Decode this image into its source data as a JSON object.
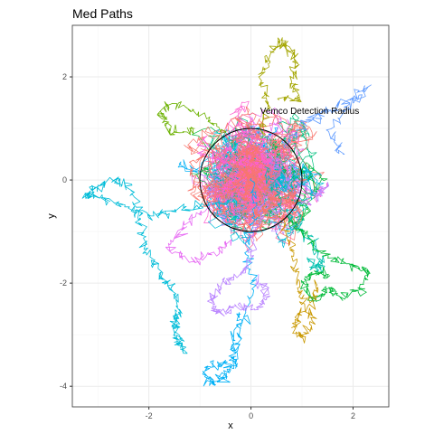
{
  "chart_data": {
    "type": "line",
    "title": "Med Paths",
    "xlabel": "x",
    "ylabel": "y",
    "xlim": [
      -3.5,
      2.7
    ],
    "ylim": [
      -4.4,
      3.0
    ],
    "x_ticks": [
      -2,
      0,
      2
    ],
    "y_ticks": [
      2,
      0,
      -2,
      -4
    ],
    "grid": true,
    "legend": "none",
    "circle": {
      "center": [
        0,
        0
      ],
      "radius": 1,
      "color": "#000000"
    },
    "annotation": {
      "text": "Vemco Detection Radius",
      "x": 0.18,
      "y": 1.28
    },
    "palette": [
      "#F8766D",
      "#E58700",
      "#C99800",
      "#A3A500",
      "#6BB100",
      "#00BA38",
      "#00BF7D",
      "#00C0AF",
      "#00BCD8",
      "#00B0F6",
      "#619CFF",
      "#B983FF",
      "#E76BF3",
      "#FD61D1",
      "#FF67A4"
    ],
    "paths": [
      {
        "color": "#00B0F6",
        "points": [
          [
            0.0,
            0.0
          ],
          [
            0.1,
            -0.6
          ],
          [
            -0.1,
            -1.3
          ],
          [
            0.05,
            -2.1
          ],
          [
            -0.2,
            -2.8
          ],
          [
            -0.3,
            -3.4
          ],
          [
            -0.5,
            -3.8
          ],
          [
            -0.75,
            -3.95
          ],
          [
            -0.9,
            -3.75
          ],
          [
            -0.6,
            -3.55
          ],
          [
            -0.3,
            -3.6
          ],
          [
            -0.4,
            -3.2
          ],
          [
            -0.2,
            -2.6
          ]
        ]
      },
      {
        "color": "#00BCD8",
        "points": [
          [
            -0.3,
            -0.4
          ],
          [
            -0.9,
            -0.5
          ],
          [
            -1.5,
            -0.6
          ],
          [
            -2.0,
            -0.7
          ],
          [
            -2.5,
            -0.5
          ],
          [
            -3.0,
            -0.35
          ],
          [
            -3.25,
            -0.3
          ],
          [
            -3.05,
            -0.15
          ],
          [
            -2.7,
            0.0
          ],
          [
            -2.35,
            -0.15
          ],
          [
            -2.2,
            -0.75
          ],
          [
            -2.05,
            -1.4
          ],
          [
            -1.8,
            -1.8
          ],
          [
            -1.55,
            -2.1
          ],
          [
            -1.4,
            -2.5
          ],
          [
            -1.5,
            -2.9
          ],
          [
            -1.3,
            -3.3
          ],
          [
            -1.5,
            -3.05
          ],
          [
            -1.45,
            -2.55
          ]
        ]
      },
      {
        "color": "#00C0AF",
        "points": [
          [
            0.3,
            0.2
          ],
          [
            0.6,
            -0.5
          ],
          [
            0.9,
            -0.9
          ],
          [
            1.2,
            -1.2
          ],
          [
            1.4,
            -1.6
          ],
          [
            1.3,
            -1.75
          ],
          [
            1.1,
            -1.5
          ]
        ]
      },
      {
        "color": "#00BA38",
        "points": [
          [
            0.7,
            -0.7
          ],
          [
            1.1,
            -1.1
          ],
          [
            1.5,
            -1.5
          ],
          [
            1.9,
            -1.6
          ],
          [
            2.3,
            -1.75
          ],
          [
            2.15,
            -2.2
          ],
          [
            1.75,
            -2.25
          ],
          [
            1.5,
            -2.1
          ],
          [
            1.25,
            -2.35
          ],
          [
            1.0,
            -2.05
          ],
          [
            1.2,
            -1.8
          ],
          [
            1.55,
            -1.85
          ]
        ]
      },
      {
        "color": "#C99800",
        "points": [
          [
            0.6,
            -0.8
          ],
          [
            0.8,
            -1.4
          ],
          [
            0.95,
            -2.0
          ],
          [
            1.0,
            -2.5
          ],
          [
            0.85,
            -2.85
          ],
          [
            0.95,
            -3.1
          ],
          [
            1.2,
            -2.85
          ],
          [
            1.15,
            -2.4
          ],
          [
            1.3,
            -2.05
          ]
        ]
      },
      {
        "color": "#A3A500",
        "points": [
          [
            0.2,
            0.8
          ],
          [
            0.3,
            1.5
          ],
          [
            0.2,
            2.0
          ],
          [
            0.35,
            2.4
          ],
          [
            0.55,
            2.7
          ],
          [
            0.75,
            2.55
          ],
          [
            0.9,
            2.25
          ],
          [
            0.8,
            1.85
          ],
          [
            0.95,
            1.6
          ],
          [
            0.55,
            1.55
          ]
        ]
      },
      {
        "color": "#6BB100",
        "points": [
          [
            -0.5,
            0.9
          ],
          [
            -1.0,
            1.3
          ],
          [
            -1.6,
            1.5
          ],
          [
            -1.75,
            1.25
          ],
          [
            -1.55,
            0.9
          ],
          [
            -1.1,
            1.0
          ]
        ]
      },
      {
        "color": "#B983FF",
        "points": [
          [
            0.2,
            -0.5
          ],
          [
            0.05,
            -1.2
          ],
          [
            -0.1,
            -1.75
          ],
          [
            -0.5,
            -2.0
          ],
          [
            -0.8,
            -2.3
          ],
          [
            -0.6,
            -2.6
          ],
          [
            -0.3,
            -2.45
          ],
          [
            0.15,
            -2.5
          ],
          [
            0.35,
            -2.2
          ],
          [
            0.1,
            -1.9
          ]
        ]
      },
      {
        "color": "#619CFF",
        "points": [
          [
            0.6,
            0.6
          ],
          [
            1.1,
            1.1
          ],
          [
            1.4,
            1.3
          ],
          [
            1.8,
            1.5
          ],
          [
            2.3,
            1.8
          ],
          [
            1.9,
            1.45
          ],
          [
            1.55,
            0.9
          ],
          [
            1.8,
            0.5
          ]
        ]
      },
      {
        "color": "#E76BF3",
        "points": [
          [
            -0.8,
            -0.5
          ],
          [
            -1.3,
            -0.9
          ],
          [
            -1.6,
            -1.3
          ],
          [
            -1.1,
            -1.6
          ],
          [
            -0.7,
            -1.4
          ],
          [
            -0.4,
            -1.2
          ]
        ]
      },
      {
        "color": "#F8766D",
        "points": [
          [
            0.0,
            0.0
          ],
          [
            -0.6,
            0.6
          ],
          [
            -1.2,
            0.3
          ],
          [
            -0.9,
            -0.4
          ],
          [
            -0.2,
            -0.9
          ],
          [
            0.6,
            -0.7
          ],
          [
            1.0,
            0.2
          ],
          [
            0.4,
            0.9
          ]
        ]
      }
    ]
  }
}
